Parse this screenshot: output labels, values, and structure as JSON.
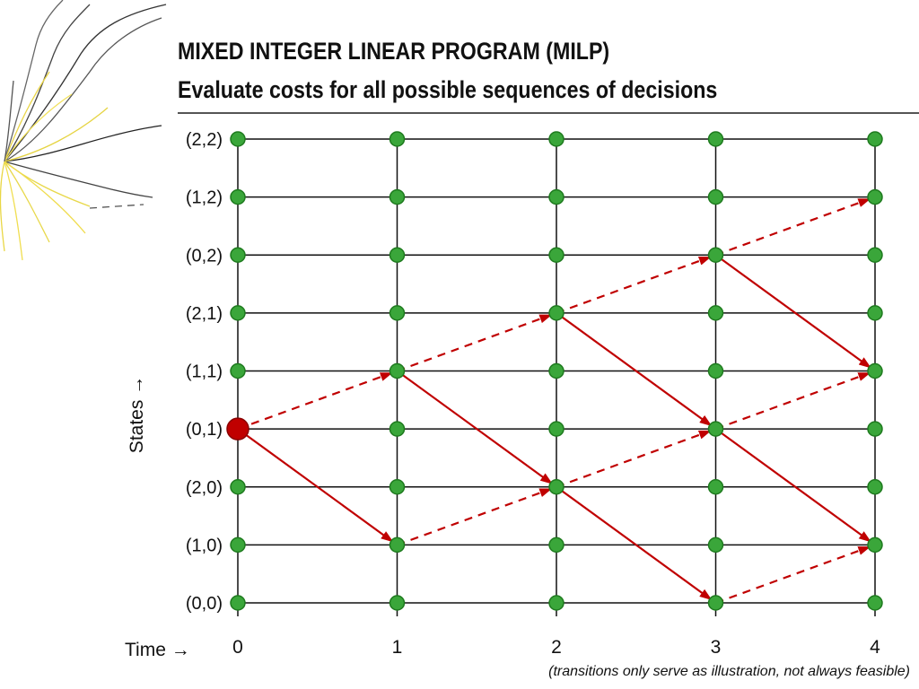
{
  "title": {
    "line1": "MIXED INTEGER LINEAR PROGRAM (MILP)",
    "line2": "Evaluate costs for all possible sequences of decisions"
  },
  "axes": {
    "states_label": "States →",
    "time_label": "Time →"
  },
  "states": [
    "(0,0)",
    "(1,0)",
    "(2,0)",
    "(0,1)",
    "(1,1)",
    "(2,1)",
    "(0,2)",
    "(1,2)",
    "(2,2)"
  ],
  "times": [
    "0",
    "1",
    "2",
    "3",
    "4"
  ],
  "start_node": {
    "time": 0,
    "state": 3
  },
  "transitions": [
    {
      "from": [
        0,
        3
      ],
      "to": [
        1,
        4
      ],
      "style": "dashed"
    },
    {
      "from": [
        0,
        3
      ],
      "to": [
        1,
        1
      ],
      "style": "solid"
    },
    {
      "from": [
        1,
        4
      ],
      "to": [
        2,
        5
      ],
      "style": "dashed"
    },
    {
      "from": [
        1,
        4
      ],
      "to": [
        2,
        2
      ],
      "style": "solid"
    },
    {
      "from": [
        1,
        1
      ],
      "to": [
        2,
        2
      ],
      "style": "dashed"
    },
    {
      "from": [
        2,
        5
      ],
      "to": [
        3,
        6
      ],
      "style": "dashed"
    },
    {
      "from": [
        2,
        5
      ],
      "to": [
        3,
        3
      ],
      "style": "solid"
    },
    {
      "from": [
        2,
        2
      ],
      "to": [
        3,
        3
      ],
      "style": "dashed"
    },
    {
      "from": [
        2,
        2
      ],
      "to": [
        3,
        0
      ],
      "style": "solid"
    },
    {
      "from": [
        3,
        6
      ],
      "to": [
        4,
        7
      ],
      "style": "dashed"
    },
    {
      "from": [
        3,
        6
      ],
      "to": [
        4,
        4
      ],
      "style": "solid"
    },
    {
      "from": [
        3,
        3
      ],
      "to": [
        4,
        4
      ],
      "style": "dashed"
    },
    {
      "from": [
        3,
        3
      ],
      "to": [
        4,
        1
      ],
      "style": "solid"
    },
    {
      "from": [
        3,
        0
      ],
      "to": [
        4,
        1
      ],
      "style": "dashed"
    }
  ],
  "note": "(transitions only serve as illustration, not always feasible)",
  "colors": {
    "node": "#3aa63a",
    "node_stroke": "#1e7a1e",
    "start_node": "#c00000",
    "arrow": "#c00000",
    "grid": "#111111"
  }
}
